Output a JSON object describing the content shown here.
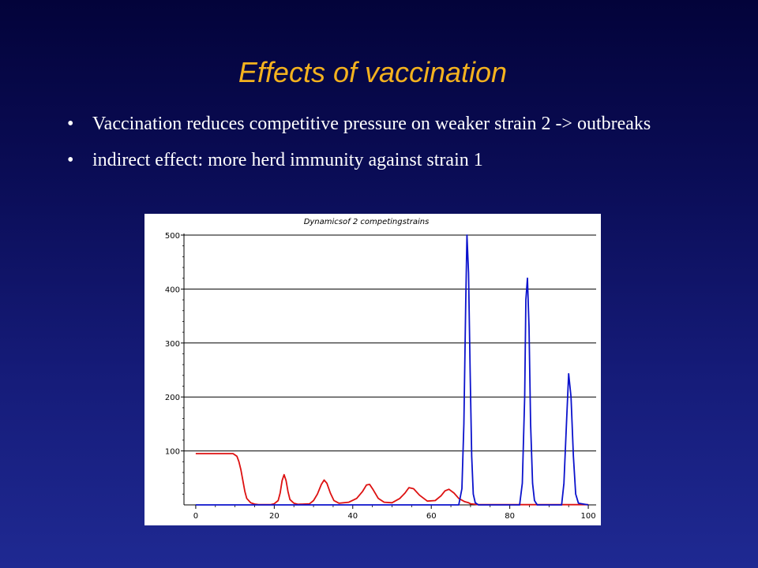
{
  "slide": {
    "title": "Effects of vaccination",
    "bullet_glyph": "•",
    "bullets": [
      "Vaccination reduces competitive pressure on weaker strain 2 -> outbreaks",
      "indirect effect: more herd immunity against strain 1"
    ]
  },
  "colors": {
    "title": "#f4b21e",
    "text": "#ffffff",
    "strain1": "#dd1111",
    "strain2": "#0b12cc",
    "axis": "#000000",
    "grid": "#000000"
  },
  "chart_data": {
    "type": "line",
    "title": "Dynamicsof 2 competingstrains",
    "xlim": [
      -3,
      102
    ],
    "ylim": [
      0,
      500
    ],
    "x_ticks": [
      0,
      20,
      40,
      60,
      80,
      100
    ],
    "y_ticks": [
      100,
      200,
      300,
      400,
      500
    ],
    "grid": "horizontal",
    "series": [
      {
        "color": "#dd1111",
        "x": [
          0,
          9.5,
          10.5,
          11,
          11.5,
          12,
          12.5,
          13,
          14,
          15,
          16,
          19,
          20,
          21,
          21.5,
          22,
          22.5,
          23,
          23.5,
          24,
          25,
          26,
          29,
          30,
          31,
          32,
          32.7,
          33.4,
          34.3,
          35.2,
          36.5,
          39,
          41,
          42.5,
          43.5,
          44.3,
          45.2,
          46.5,
          48,
          50,
          52,
          53.3,
          54.3,
          55.5,
          57,
          59,
          61,
          62.5,
          63.5,
          64.5,
          65.8,
          67,
          68.5,
          69.5,
          70,
          72,
          100
        ],
        "y": [
          95,
          95,
          90,
          80,
          65,
          45,
          25,
          12,
          4,
          1.5,
          0.5,
          0.5,
          2,
          8,
          22,
          45,
          56,
          45,
          25,
          10,
          3,
          1,
          2,
          8,
          20,
          38,
          46,
          40,
          22,
          8,
          3,
          5,
          12,
          25,
          37,
          38,
          28,
          12,
          5,
          4,
          12,
          22,
          32,
          30,
          18,
          7,
          8,
          17,
          26,
          29,
          22,
          12,
          6,
          4,
          2,
          0.5,
          0.5
        ]
      },
      {
        "color": "#0b12cc",
        "x": [
          0,
          67,
          67.8,
          68.3,
          68.8,
          69.1,
          69.5,
          69.9,
          70.3,
          70.7,
          71.2,
          72,
          82.5,
          83.2,
          83.8,
          84.1,
          84.5,
          84.9,
          85.3,
          85.8,
          86.3,
          87,
          93.2,
          93.8,
          94.5,
          95,
          95.6,
          96.2,
          96.8,
          97.5,
          100
        ],
        "y": [
          0,
          0,
          30,
          150,
          380,
          500,
          430,
          250,
          90,
          20,
          4,
          0,
          0,
          40,
          200,
          380,
          420,
          330,
          150,
          40,
          8,
          0,
          0,
          40,
          160,
          243,
          200,
          90,
          20,
          3,
          0
        ]
      }
    ]
  }
}
